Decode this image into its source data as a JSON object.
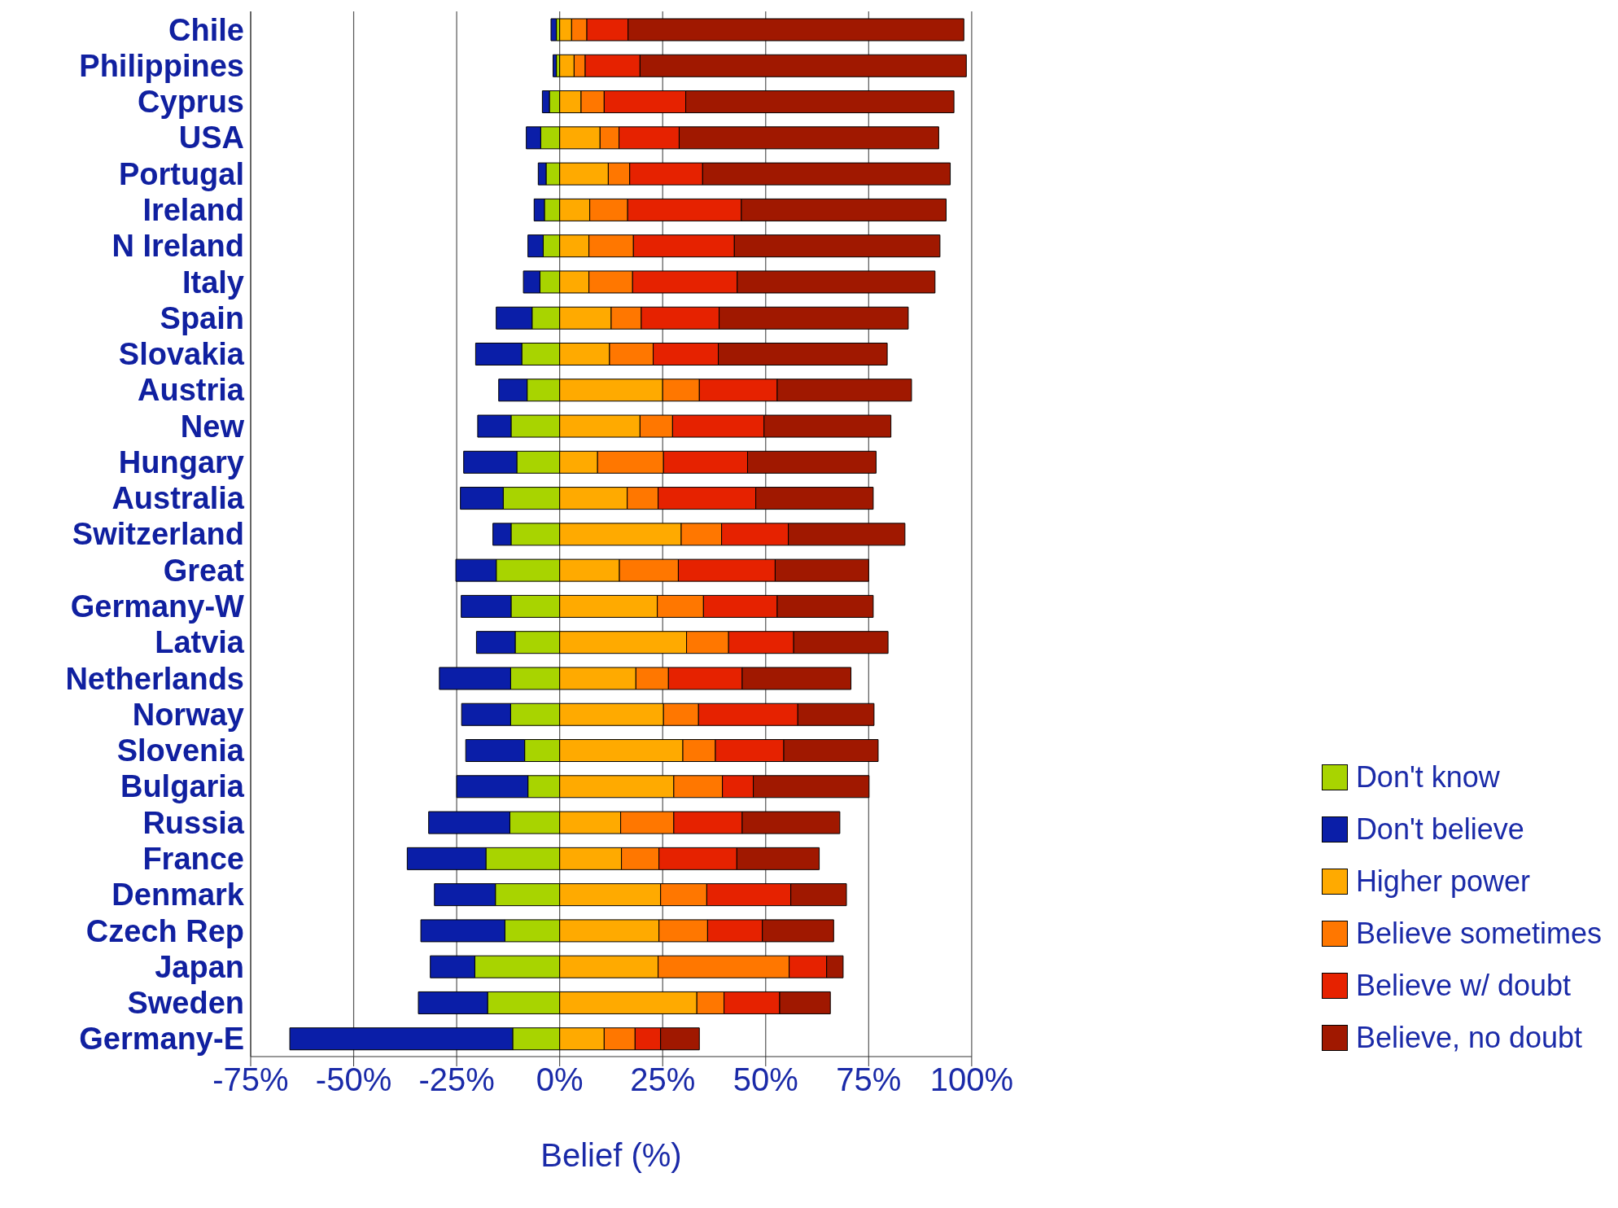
{
  "chart_data": {
    "type": "bar",
    "orientation": "horizontal",
    "stacked": true,
    "xlabel": "Belief (%)",
    "categories": [
      "Chile",
      "Philippines",
      "Cyprus",
      "USA",
      "Portugal",
      "Ireland",
      "N Ireland",
      "Italy",
      "Spain",
      "Slovakia",
      "Austria",
      "New",
      "Hungary",
      "Australia",
      "Switzerland",
      "Great",
      "Germany-W",
      "Latvia",
      "Netherlands",
      "Norway",
      "Slovenia",
      "Bulgaria",
      "Russia",
      "France",
      "Denmark",
      "Czech Rep",
      "Japan",
      "Sweden",
      "Germany-E"
    ],
    "series": [
      {
        "name": "Don't know",
        "color": "#a8d400",
        "values": [
          -0.8,
          -0.8,
          -2.5,
          -4.6,
          -3.3,
          -3.7,
          -4,
          -4.8,
          -6.7,
          -9.2,
          -7.9,
          -11.8,
          -10.4,
          -13.7,
          -11.8,
          -15.4,
          -11.8,
          -10.8,
          -11.9,
          -11.9,
          -8.5,
          -7.7,
          -12.1,
          -17.9,
          -15.6,
          -13.3,
          -20.6,
          -17.5,
          -11.4
        ]
      },
      {
        "name": "Don't believe",
        "color": "#0a1ea8",
        "values": [
          -1.3,
          -0.8,
          -1.7,
          -3.5,
          -1.9,
          -2.5,
          -3.7,
          -4,
          -8.7,
          -11.2,
          -6.9,
          -8.1,
          -12.9,
          -10.4,
          -4.4,
          -9.8,
          -12.1,
          -9.4,
          -17.3,
          -11.9,
          -14.3,
          -17.3,
          -19.7,
          -19.1,
          -14.8,
          -20.4,
          -10.8,
          -16.8,
          -54.1
        ]
      },
      {
        "name": "Higher power",
        "color": "#ffaa00",
        "values": [
          2.9,
          3.5,
          5.2,
          9.8,
          11.8,
          7.3,
          7.1,
          7.1,
          12.5,
          12.1,
          25,
          19.5,
          9.2,
          16.4,
          29.5,
          14.5,
          23.7,
          30.8,
          18.5,
          25.2,
          29.9,
          27.7,
          14.8,
          15,
          24.5,
          24.1,
          23.9,
          33.3,
          10.8
        ]
      },
      {
        "name": "Believe sometimes",
        "color": "#ff7700",
        "values": [
          3.7,
          2.7,
          5.6,
          4.6,
          5.2,
          9.2,
          10.8,
          10.6,
          7.3,
          10.6,
          8.9,
          7.9,
          16,
          7.5,
          9.8,
          14.3,
          11.2,
          10.2,
          7.9,
          8.5,
          7.9,
          11.8,
          12.9,
          9.1,
          11.2,
          11.8,
          31.8,
          6.6,
          7.5
        ]
      },
      {
        "name": "Believe w/ doubt",
        "color": "#e62200",
        "values": [
          10,
          13.3,
          19.8,
          14.6,
          17.7,
          27.6,
          24.5,
          25.4,
          18.9,
          15.8,
          18.9,
          22.2,
          20.4,
          23.7,
          16.2,
          23.5,
          17.9,
          15.8,
          17.9,
          24.1,
          16.6,
          7.5,
          16.6,
          18.9,
          20.4,
          13.3,
          9.1,
          13.5,
          6.2
        ]
      },
      {
        "name": "Believe, no doubt",
        "color": "#a01800",
        "values": [
          81.5,
          79.2,
          65.1,
          63,
          60.1,
          49.7,
          49.9,
          48,
          45.9,
          41,
          32.6,
          30.8,
          31.2,
          28.5,
          28.3,
          22.7,
          23.3,
          22.9,
          26.4,
          18.5,
          22.9,
          28.1,
          23.7,
          20,
          13.5,
          17.3,
          4,
          12.3,
          9.4
        ]
      }
    ],
    "xlim": [
      -75,
      100
    ],
    "xticks": [
      {
        "value": -75,
        "label": "-75%"
      },
      {
        "value": -50,
        "label": "-50%"
      },
      {
        "value": -25,
        "label": "-25%"
      },
      {
        "value": 0,
        "label": "0%"
      },
      {
        "value": 25,
        "label": "25%"
      },
      {
        "value": 50,
        "label": "50%"
      },
      {
        "value": 75,
        "label": "75%"
      },
      {
        "value": 100,
        "label": "100%"
      }
    ],
    "grid": "x",
    "legend": "bottom right"
  }
}
